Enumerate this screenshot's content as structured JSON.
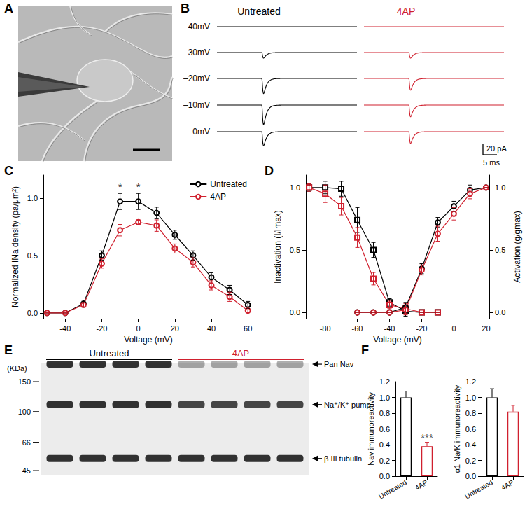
{
  "panel_labels": [
    "A",
    "B",
    "C",
    "D",
    "E",
    "F"
  ],
  "traces": {
    "columns": [
      "Untreated",
      "4AP"
    ],
    "colors": [
      "#000000",
      "#d0202e"
    ],
    "rows": [
      {
        "label": "–40mV",
        "peaks_pA": [
          0,
          0
        ]
      },
      {
        "label": "–30mV",
        "peaks_pA": [
          -10,
          -10
        ]
      },
      {
        "label": "–20mV",
        "peaks_pA": [
          -27,
          -21
        ]
      },
      {
        "label": "–10mV",
        "peaks_pA": [
          -35,
          -21
        ]
      },
      {
        "label": "0mV",
        "peaks_pA": [
          -25,
          -21
        ]
      }
    ],
    "step_onset_ms": 16,
    "trace_ms": 50,
    "scale_bar": {
      "current_pA": 20,
      "current_label": "20 pA",
      "time_ms": 5,
      "time_label": "5 ms"
    }
  },
  "blot": {
    "unit_label": "(KDa)",
    "markers": [
      150,
      100,
      66,
      45
    ],
    "groups": [
      {
        "label": "Untreated",
        "lanes": 4
      },
      {
        "label": "4AP",
        "lanes": 4
      }
    ],
    "bands": [
      {
        "label": "Pan Nav",
        "kDa": 190,
        "intensity": [
          1,
          0.4
        ]
      },
      {
        "label": "Na⁺/K⁺ pump",
        "kDa": 110,
        "intensity": [
          1,
          0.9
        ]
      },
      {
        "label": "β III tubulin",
        "kDa": 53,
        "intensity": [
          1,
          1
        ]
      }
    ]
  },
  "chart_data": [
    {
      "type": "line",
      "x": [
        -50,
        -40,
        -30,
        -20,
        -10,
        0,
        10,
        20,
        30,
        40,
        50,
        60
      ],
      "xlim": [
        -52,
        63
      ],
      "xticks": [
        -40,
        -20,
        0,
        20,
        40,
        60
      ],
      "xlabel": "Voltage (mV)",
      "ylabel": "Normalized INa density (pa/μm²)",
      "ylim": [
        -0.05,
        1.2
      ],
      "yticks": [
        {
          "value": 0,
          "label": "0.0"
        },
        {
          "value": 0.5,
          "label": "0.5"
        },
        {
          "value": 1,
          "label": "1.0"
        }
      ],
      "grid": false,
      "legend": "upper right",
      "series": [
        {
          "name": "Untreated",
          "color": "#000000",
          "marker": "circle",
          "values": [
            0,
            0,
            0.08,
            0.5,
            0.97,
            0.97,
            0.87,
            0.68,
            0.5,
            0.31,
            0.2,
            0.07
          ],
          "errors": [
            0,
            0,
            0.03,
            0.04,
            0.07,
            0.07,
            0.05,
            0.04,
            0.04,
            0.04,
            0.04,
            0.03
          ]
        },
        {
          "name": "4AP",
          "color": "#d0202e",
          "marker": "circle",
          "values": [
            0,
            0,
            0.07,
            0.43,
            0.72,
            0.79,
            0.76,
            0.56,
            0.44,
            0.24,
            0.14,
            0.02
          ],
          "errors": [
            0,
            0,
            0.02,
            0.04,
            0.05,
            0.02,
            0.05,
            0.04,
            0.04,
            0.04,
            0.04,
            0.03
          ]
        }
      ],
      "annotations": [
        {
          "text": "*",
          "x": -10,
          "y": 1.1
        },
        {
          "text": "*",
          "x": 0,
          "y": 1.1
        }
      ]
    },
    {
      "type": "line",
      "xlim": [
        -92,
        22
      ],
      "xticks": [
        -80,
        -60,
        -40,
        -20,
        0,
        20
      ],
      "xlabel": "Voltage (mV)",
      "ylabel": "Inactivation (I/Imax)",
      "ylim": [
        -0.05,
        1.1
      ],
      "yticks": [
        {
          "value": 0,
          "label": "0.0"
        },
        {
          "value": 0.5,
          "label": "0.5"
        },
        {
          "value": 1,
          "label": "1.0"
        }
      ],
      "y2label": "Activation (g/gmax)",
      "y2lim": [
        -0.05,
        1.1
      ],
      "y2ticks": [
        {
          "value": 0,
          "label": "0.0"
        },
        {
          "value": 0.5,
          "label": "0.5"
        },
        {
          "value": 1,
          "label": "1.0"
        }
      ],
      "grid": false,
      "series": [
        {
          "color": "#000000",
          "marker": "square",
          "x": [
            -90,
            -80,
            -70,
            -60,
            -50,
            -40,
            -30,
            -20,
            -10
          ],
          "values": [
            1.0,
            1.0,
            0.99,
            0.74,
            0.5,
            0.08,
            0.01,
            0,
            0
          ],
          "errors": [
            0.03,
            0.05,
            0.06,
            0.1,
            0.06,
            0.03,
            0.04,
            0,
            0
          ]
        },
        {
          "color": "#d0202e",
          "marker": "square",
          "x": [
            -90,
            -80,
            -70,
            -60,
            -50,
            -40,
            -30,
            -20,
            -10
          ],
          "values": [
            1.0,
            0.95,
            0.85,
            0.6,
            0.27,
            0.06,
            0.03,
            0,
            0
          ],
          "errors": [
            0.03,
            0.07,
            0.07,
            0.08,
            0.05,
            0.03,
            0.04,
            0,
            0
          ]
        },
        {
          "color": "#000000",
          "marker": "circle",
          "axis": "y2",
          "x": [
            -60,
            -50,
            -40,
            -30,
            -20,
            -10,
            0,
            10,
            20
          ],
          "values": [
            0,
            0,
            0,
            0.04,
            0.35,
            0.72,
            0.85,
            0.98,
            1.0
          ],
          "errors": [
            0,
            0,
            0,
            0.04,
            0.04,
            0.04,
            0.04,
            0.04,
            0
          ]
        },
        {
          "color": "#d0202e",
          "marker": "circle",
          "axis": "y2",
          "x": [
            -60,
            -50,
            -40,
            -30,
            -20,
            -10,
            0,
            10,
            20
          ],
          "values": [
            0,
            0,
            0,
            0.02,
            0.34,
            0.63,
            0.79,
            0.95,
            1.0
          ],
          "errors": [
            0,
            0,
            0,
            0.04,
            0.04,
            0.06,
            0.05,
            0.04,
            0
          ]
        }
      ]
    },
    {
      "type": "bar",
      "categories": [
        "Untreated",
        "4AP"
      ],
      "values": [
        1.0,
        0.38
      ],
      "errors": [
        0.08,
        0.05
      ],
      "colors": [
        "#000000",
        "#d0202e"
      ],
      "ylabel": "Nav immunoreactivity",
      "ylim": [
        0,
        1.2
      ],
      "yticks": [
        {
          "value": 0,
          "label": "0.0"
        },
        {
          "value": 0.2,
          "label": "0.2"
        },
        {
          "value": 0.4,
          "label": "0.4"
        },
        {
          "value": 0.6,
          "label": "0.6"
        },
        {
          "value": 0.8,
          "label": "0.8"
        },
        {
          "value": 1,
          "label": "1.0"
        },
        {
          "value": 1.2,
          "label": "1.2"
        }
      ],
      "grid": false,
      "annotations": [
        {
          "text": "***",
          "x": "4AP",
          "y": 0.49
        }
      ]
    },
    {
      "type": "bar",
      "categories": [
        "Untreated",
        "4AP"
      ],
      "values": [
        1.0,
        0.82
      ],
      "errors": [
        0.11,
        0.08
      ],
      "colors": [
        "#000000",
        "#d0202e"
      ],
      "ylabel": "α1 Na/K immunoreactivity",
      "ylim": [
        0,
        1.2
      ],
      "yticks": [
        {
          "value": 0,
          "label": "0.0"
        },
        {
          "value": 0.2,
          "label": "0.2"
        },
        {
          "value": 0.4,
          "label": "0.4"
        },
        {
          "value": 0.6,
          "label": "0.6"
        },
        {
          "value": 0.8,
          "label": "0.8"
        },
        {
          "value": 1,
          "label": "1.0"
        },
        {
          "value": 1.2,
          "label": "1.2"
        }
      ],
      "grid": false
    }
  ]
}
